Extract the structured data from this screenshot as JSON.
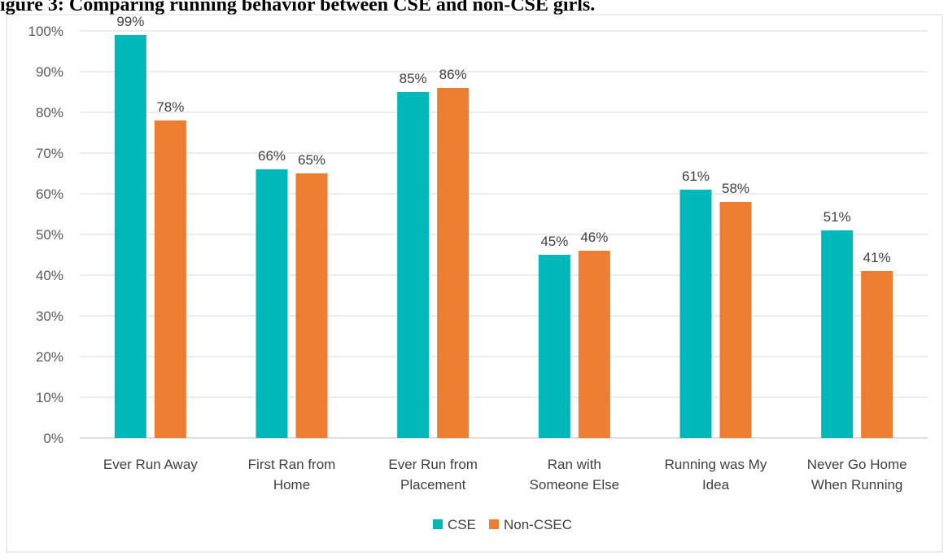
{
  "figure_title": "igure 3: Comparing running behavior between CSE and non-CSE girls.",
  "chart_data": {
    "type": "bar",
    "title": "",
    "xlabel": "",
    "ylabel": "",
    "ylim": [
      0,
      100
    ],
    "ytick_step": 10,
    "ytick_suffix": "%",
    "grid": true,
    "legend_position": "bottom",
    "categories": [
      [
        "Ever Run Away"
      ],
      [
        "First Ran from",
        "Home"
      ],
      [
        "Ever Run from",
        "Placement"
      ],
      [
        "Ran with",
        "Someone Else"
      ],
      [
        "Running was My",
        "Idea"
      ],
      [
        "Never Go Home",
        "When Running"
      ]
    ],
    "series": [
      {
        "name": "CSE",
        "color": "#00B8BA",
        "values": [
          99,
          66,
          85,
          45,
          61,
          51
        ]
      },
      {
        "name": "Non-CSEC",
        "color": "#ED7D31",
        "values": [
          78,
          65,
          86,
          46,
          58,
          41
        ]
      }
    ],
    "data_label_suffix": "%"
  }
}
